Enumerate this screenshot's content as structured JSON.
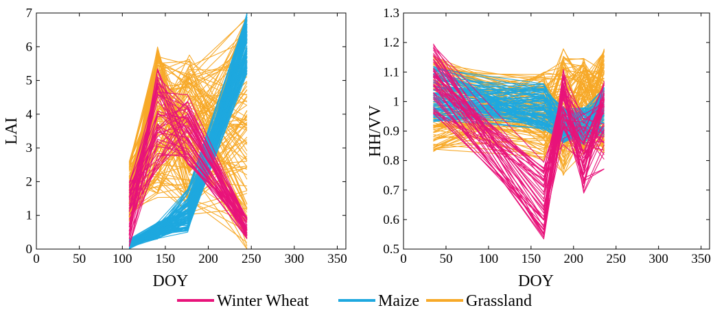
{
  "colors": {
    "winter_wheat": "#e8137a",
    "maize": "#1ea8df",
    "grassland": "#f7a928",
    "axis": "#000000"
  },
  "legend": {
    "items": [
      {
        "label": "Winter Wheat",
        "color": "#e8137a"
      },
      {
        "label": "Maize",
        "color": "#1ea8df"
      },
      {
        "label": "Grassland",
        "color": "#f7a928"
      }
    ]
  },
  "chart_data": [
    {
      "type": "line",
      "xlabel": "DOY",
      "ylabel": "LAI",
      "xlim": [
        0,
        360
      ],
      "ylim": [
        0,
        7
      ],
      "xticks": [
        "0",
        "50",
        "100",
        "150",
        "200",
        "250",
        "300",
        "350"
      ],
      "yticks": [
        "0",
        "1",
        "2",
        "3",
        "4",
        "5",
        "6",
        "7"
      ],
      "grid": false,
      "series": [
        {
          "name": "Grassland",
          "line_count": 120,
          "representative": {
            "x": [
              108,
              141,
              178,
              245
            ],
            "y_range_at_x": [
              [
                0.8,
                2.6
              ],
              [
                1.5,
                6.0
              ],
              [
                1.0,
                5.8
              ],
              [
                0.0,
                7.0
              ]
            ]
          }
        },
        {
          "name": "Maize",
          "line_count": 100,
          "representative": {
            "x": [
              108,
              141,
              176,
              245
            ],
            "y_range_at_x": [
              [
                0.0,
                0.3
              ],
              [
                0.3,
                0.8
              ],
              [
                0.5,
                1.8
              ],
              [
                5.2,
                7.0
              ]
            ]
          }
        },
        {
          "name": "Winter Wheat",
          "line_count": 45,
          "representative": {
            "x": [
              108,
              141,
              176,
              245
            ],
            "y_range_at_x": [
              [
                0.0,
                2.0
              ],
              [
                2.2,
                5.4
              ],
              [
                2.5,
                4.6
              ],
              [
                0.3,
                1.0
              ]
            ]
          }
        }
      ]
    },
    {
      "type": "line",
      "xlabel": "DOY",
      "ylabel": "HH/VV",
      "xlim": [
        0,
        360
      ],
      "ylim": [
        0.5,
        1.3
      ],
      "xticks": [
        "0",
        "50",
        "100",
        "150",
        "200",
        "250",
        "300",
        "350"
      ],
      "yticks": [
        "0.5",
        "0.6",
        "0.7",
        "0.8",
        "0.9",
        "1",
        "1.1",
        "1.2",
        "1.3"
      ],
      "grid": false,
      "series": [
        {
          "name": "Grassland",
          "line_count": 110,
          "representative": {
            "x": [
              35,
              165,
              188,
              212,
              236
            ],
            "y_range_at_x": [
              [
                0.83,
                1.17
              ],
              [
                0.8,
                1.1
              ],
              [
                0.75,
                1.18
              ],
              [
                0.82,
                1.15
              ],
              [
                0.82,
                1.18
              ]
            ]
          }
        },
        {
          "name": "Maize",
          "line_count": 90,
          "representative": {
            "x": [
              35,
              165,
              188,
              212,
              236
            ],
            "y_range_at_x": [
              [
                0.93,
                1.12
              ],
              [
                0.9,
                1.06
              ],
              [
                0.86,
                0.98
              ],
              [
                0.85,
                0.98
              ],
              [
                0.88,
                1.05
              ]
            ]
          }
        },
        {
          "name": "Winter Wheat",
          "line_count": 45,
          "representative": {
            "x": [
              35,
              165,
              188,
              212,
              236
            ],
            "y_range_at_x": [
              [
                0.95,
                1.2
              ],
              [
                0.53,
                0.8
              ],
              [
                0.85,
                1.11
              ],
              [
                0.68,
                0.97
              ],
              [
                0.77,
                1.07
              ]
            ]
          }
        }
      ]
    }
  ]
}
